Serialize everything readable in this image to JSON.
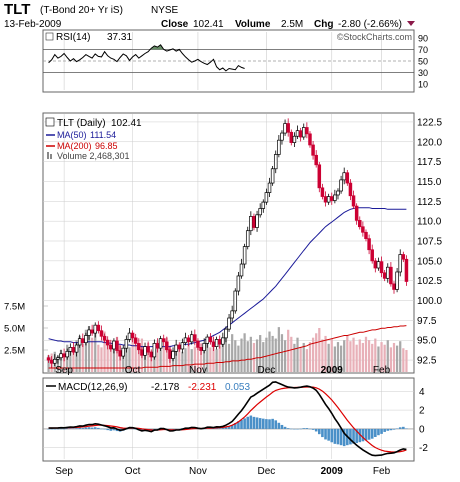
{
  "header": {
    "symbol": "TLT",
    "name": "(T-Bond 20+ Yr iS)",
    "exchange": "NYSE",
    "date": "13-Feb-2009",
    "close_label": "Close",
    "close": "102.41",
    "volume_label": "Volume",
    "volume": "2.5M",
    "chg_label": "Chg",
    "chg": "-2.80 (-2.66%)",
    "copyright": "©StockCharts.com"
  },
  "colors": {
    "up_candle": "#000000",
    "down_candle": "#cc0033",
    "ma50": "#1a1a99",
    "ma200": "#cc0000",
    "volume_up": "#a8a8a8",
    "volume_down": "#e8b0b8",
    "rsi_overbought_fill": "#336633",
    "macd_line": "#000000",
    "signal_line": "#dd0000",
    "histogram": "#4a90c8",
    "grid": "#cccccc"
  },
  "chart_data": [
    {
      "type": "line",
      "title": "RSI(14) 37.31",
      "legend": "RSI(14)",
      "legend_value": "37.31",
      "y_ticks": [
        "90",
        "70",
        "50",
        "30",
        "10"
      ],
      "ylim": [
        0,
        100
      ],
      "reference_lines": [
        70,
        50,
        30
      ],
      "series": [
        {
          "values": [
            47,
            52,
            61,
            55,
            58,
            63,
            56,
            50,
            54,
            49,
            52,
            56,
            61,
            58,
            55,
            62,
            58,
            57,
            66,
            59,
            55,
            53,
            49,
            56,
            62,
            59,
            51,
            57,
            61,
            55,
            59,
            63,
            66,
            72,
            76,
            74,
            78,
            70,
            67,
            69,
            71,
            67,
            70,
            63,
            57,
            52,
            48,
            50,
            53,
            49,
            46,
            44,
            48,
            53,
            40,
            35,
            38,
            33,
            37,
            36,
            35,
            42,
            39,
            37
          ]
        }
      ]
    },
    {
      "type": "candlestick",
      "title": "TLT (Daily) 102.41",
      "x_ticks": [
        "Sep",
        "Oct",
        "Nov",
        "Dec",
        "2009",
        "Feb"
      ],
      "y_ticks": [
        "122.5",
        "120.0",
        "117.5",
        "115.0",
        "112.5",
        "110.0",
        "107.5",
        "105.0",
        "102.5",
        "100.0",
        "97.5",
        "95.0",
        "92.5"
      ],
      "ylim": [
        91.0,
        123.5
      ],
      "volume_ticks": [
        "7.5M",
        "5.0M",
        "2.5M"
      ],
      "volume_label": "Volume 2,468,301",
      "legend": [
        {
          "name": "TLT (Daily)",
          "value": "102.41"
        },
        {
          "name": "MA(50)",
          "value": "111.54"
        },
        {
          "name": "MA(200)",
          "value": "96.85"
        },
        {
          "name": "Volume",
          "value": "2,468,301"
        }
      ],
      "closes": [
        92.5,
        92.1,
        92.6,
        92.8,
        93.3,
        92.9,
        93.6,
        94.1,
        93.5,
        94.4,
        95.2,
        94.7,
        95.6,
        96.3,
        95.9,
        96.9,
        96.2,
        95.5,
        95.0,
        94.4,
        93.9,
        94.9,
        93.7,
        93.0,
        94.0,
        95.1,
        95.9,
        95.3,
        94.6,
        93.8,
        93.1,
        94.2,
        93.5,
        92.9,
        94.6,
        94.0,
        95.2,
        94.8,
        93.8,
        92.7,
        93.6,
        94.4,
        93.9,
        94.7,
        95.3,
        94.8,
        95.7,
        94.9,
        94.1,
        93.7,
        94.6,
        95.4,
        94.8,
        94.2,
        95.1,
        94.5,
        95.3,
        96.4,
        97.8,
        98.7,
        101.2,
        103.1,
        104.6,
        106.8,
        108.8,
        110.6,
        109.2,
        110.8,
        111.6,
        112.4,
        113.6,
        114.8,
        116.6,
        118.4,
        120.2,
        121.1,
        122.3,
        121.2,
        119.9,
        120.7,
        121.4,
        120.6,
        121.8,
        121.0,
        119.6,
        118.3,
        117.1,
        114.2,
        113.1,
        112.4,
        113.1,
        112.6,
        113.3,
        113.8,
        115.2,
        116.1,
        114.8,
        113.2,
        111.9,
        110.1,
        109.3,
        108.6,
        107.8,
        106.4,
        105.0,
        104.1,
        104.9,
        103.5,
        102.8,
        104.2,
        102.1,
        101.4,
        103.6,
        105.8,
        105.2,
        102.4
      ],
      "ma50": [
        95.2,
        95.1,
        95.0,
        94.9,
        94.9,
        94.8,
        94.8,
        94.8,
        94.7,
        94.7,
        94.7,
        94.7,
        94.8,
        94.8,
        94.8,
        94.8,
        94.8,
        94.8,
        94.7,
        94.7,
        94.6,
        94.6,
        94.5,
        94.5,
        94.4,
        94.4,
        94.4,
        94.3,
        94.3,
        94.3,
        94.2,
        94.2,
        94.2,
        94.2,
        94.2,
        94.2,
        94.2,
        94.2,
        94.2,
        94.2,
        94.3,
        94.3,
        94.3,
        94.4,
        94.5,
        94.5,
        94.6,
        94.7,
        94.8,
        94.9,
        95.0,
        95.2,
        95.4,
        95.6,
        95.8,
        96.0,
        96.3,
        96.6,
        96.9,
        97.2,
        97.5,
        97.8,
        98.1,
        98.4,
        98.7,
        99.0,
        99.3,
        99.6,
        99.9,
        100.2,
        100.6,
        101.0,
        101.4,
        101.8,
        102.3,
        102.8,
        103.3,
        103.8,
        104.3,
        104.8,
        105.3,
        105.8,
        106.3,
        106.8,
        107.3,
        107.7,
        108.1,
        108.5,
        108.9,
        109.3,
        109.6,
        109.9,
        110.2,
        110.5,
        110.8,
        111.1,
        111.3,
        111.5,
        111.6,
        111.7,
        111.7,
        111.7,
        111.7,
        111.7,
        111.6,
        111.6,
        111.6,
        111.6,
        111.6,
        111.5,
        111.5,
        111.5,
        111.5,
        111.5,
        111.5,
        111.5
      ],
      "ma200": [
        91.5,
        91.5,
        91.5,
        91.5,
        91.5,
        91.5,
        91.5,
        91.5,
        91.5,
        91.5,
        91.5,
        91.5,
        91.5,
        91.5,
        91.5,
        91.5,
        91.5,
        91.5,
        91.5,
        91.5,
        91.5,
        91.5,
        91.5,
        91.5,
        91.5,
        91.5,
        91.5,
        91.5,
        91.5,
        91.5,
        91.5,
        91.6,
        91.6,
        91.6,
        91.6,
        91.6,
        91.7,
        91.7,
        91.7,
        91.7,
        91.8,
        91.8,
        91.8,
        91.8,
        91.9,
        91.9,
        91.9,
        92.0,
        92.0,
        92.0,
        92.0,
        92.1,
        92.1,
        92.1,
        92.2,
        92.2,
        92.2,
        92.3,
        92.3,
        92.4,
        92.4,
        92.4,
        92.5,
        92.5,
        92.6,
        92.6,
        92.7,
        92.8,
        92.8,
        92.9,
        93.0,
        93.1,
        93.2,
        93.3,
        93.4,
        93.5,
        93.6,
        93.7,
        93.8,
        93.9,
        94.0,
        94.1,
        94.2,
        94.3,
        94.5,
        94.6,
        94.7,
        94.8,
        94.9,
        95.0,
        95.1,
        95.2,
        95.3,
        95.4,
        95.5,
        95.6,
        95.6,
        95.7,
        95.8,
        95.9,
        96.0,
        96.0,
        96.1,
        96.2,
        96.3,
        96.3,
        96.4,
        96.5,
        96.5,
        96.6,
        96.6,
        96.7,
        96.7,
        96.8,
        96.8,
        96.85
      ],
      "volume_millions": [
        1.9,
        2.1,
        2.3,
        1.8,
        2.5,
        2.0,
        3.1,
        2.4,
        2.8,
        3.6,
        4.1,
        3.2,
        4.8,
        5.2,
        3.9,
        4.5,
        3.1,
        2.8,
        4.6,
        3.7,
        2.9,
        3.3,
        4.0,
        3.1,
        2.6,
        3.4,
        2.8,
        4.2,
        3.1,
        2.7,
        3.8,
        2.9,
        3.3,
        2.4,
        2.8,
        3.5,
        2.6,
        2.9,
        3.9,
        3.0,
        2.5,
        2.8,
        3.1,
        2.3,
        2.7,
        3.2,
        2.6,
        2.9,
        3.3,
        2.4,
        2.9,
        3.4,
        2.8,
        3.1,
        2.6,
        3.0,
        3.5,
        3.9,
        3.2,
        4.3,
        3.6,
        3.0,
        3.8,
        4.4,
        3.5,
        4.0,
        3.3,
        3.7,
        4.2,
        3.4,
        3.9,
        4.6,
        4.1,
        3.8,
        5.1,
        4.3,
        3.6,
        4.8,
        4.0,
        3.2,
        3.9,
        2.8,
        3.3,
        2.6,
        3.4,
        3.9,
        4.4,
        5.0,
        3.7,
        4.1,
        3.2,
        3.8,
        2.9,
        3.4,
        3.0,
        3.6,
        4.1,
        3.5,
        3.9,
        3.1,
        3.7,
        3.3,
        4.0,
        3.6,
        3.2,
        3.8,
        2.9,
        3.4,
        3.1,
        3.6,
        2.8,
        3.3,
        3.0,
        3.5,
        2.7,
        2.5
      ]
    },
    {
      "type": "line",
      "title": "MACD(12,26,9) -2.178, -2.231, 0.053",
      "legend": "MACD(12,26,9)",
      "legend_values": [
        "-2.178",
        "-2.231",
        "0.053"
      ],
      "y_ticks": [
        "4",
        "2",
        "0",
        "-2"
      ],
      "ylim": [
        -3.2,
        5.2
      ],
      "x_ticks": [
        "Sep",
        "Oct",
        "Nov",
        "Dec",
        "2009",
        "Feb"
      ],
      "series": [
        {
          "values": [
            0.1,
            0.09,
            0.1,
            0.11,
            0.13,
            0.12,
            0.16,
            0.2,
            0.18,
            0.24,
            0.32,
            0.3,
            0.39,
            0.47,
            0.46,
            0.54,
            0.5,
            0.42,
            0.33,
            0.22,
            0.11,
            0.12,
            -0.02,
            -0.15,
            -0.1,
            0.02,
            0.14,
            0.13,
            0.05,
            -0.08,
            -0.21,
            -0.15,
            -0.21,
            -0.29,
            -0.13,
            -0.11,
            0.03,
            0.03,
            -0.07,
            -0.22,
            -0.2,
            -0.12,
            -0.11,
            -0.02,
            0.08,
            0.08,
            0.16,
            0.14,
            0.07,
            0.02,
            0.08,
            0.18,
            0.18,
            0.15,
            0.22,
            0.21,
            0.27,
            0.39,
            0.59,
            0.8,
            1.17,
            1.57,
            1.95,
            2.4,
            2.89,
            3.38,
            3.56,
            3.8,
            4.01,
            4.22,
            4.43,
            4.65,
            4.96,
            5.0,
            4.85,
            4.71,
            4.56,
            4.45,
            4.41,
            4.36,
            4.38,
            4.43,
            4.51,
            4.55,
            4.48,
            4.34,
            4.1,
            3.67,
            3.15,
            2.62,
            2.17,
            1.65,
            1.08,
            0.62,
            0.09,
            -0.46,
            -0.8,
            -1.13,
            -1.44,
            -1.73,
            -1.99,
            -2.23,
            -2.43,
            -2.64,
            -2.8,
            -2.84,
            -2.81,
            -2.79,
            -2.68,
            -2.6,
            -2.58,
            -2.54,
            -2.41,
            -2.24,
            -2.13,
            -2.18
          ]
        },
        {
          "values": [
            0.1,
            0.1,
            0.1,
            0.1,
            0.11,
            0.11,
            0.12,
            0.13,
            0.14,
            0.16,
            0.19,
            0.21,
            0.24,
            0.29,
            0.32,
            0.36,
            0.39,
            0.4,
            0.38,
            0.35,
            0.31,
            0.27,
            0.21,
            0.14,
            0.09,
            0.07,
            0.09,
            0.1,
            0.09,
            0.06,
            0.0,
            -0.03,
            -0.07,
            -0.11,
            -0.12,
            -0.12,
            -0.09,
            -0.06,
            -0.06,
            -0.09,
            -0.11,
            -0.11,
            -0.11,
            -0.09,
            -0.06,
            -0.03,
            0.01,
            0.04,
            0.04,
            0.04,
            0.05,
            0.07,
            0.09,
            0.1,
            0.12,
            0.14,
            0.16,
            0.21,
            0.28,
            0.39,
            0.55,
            0.75,
            1.0,
            1.28,
            1.6,
            1.96,
            2.28,
            2.58,
            2.86,
            3.13,
            3.39,
            3.63,
            3.89,
            4.09,
            4.2,
            4.29,
            4.34,
            4.37,
            4.39,
            4.4,
            4.41,
            4.41,
            4.43,
            4.46,
            4.46,
            4.44,
            4.37,
            4.23,
            4.02,
            3.74,
            3.42,
            3.07,
            2.67,
            2.26,
            1.82,
            1.37,
            0.93,
            0.52,
            0.13,
            -0.23,
            -0.58,
            -0.91,
            -1.21,
            -1.49,
            -1.76,
            -1.98,
            -2.14,
            -2.26,
            -2.36,
            -2.4,
            -2.44,
            -2.46,
            -2.46,
            -2.41,
            -2.35,
            -2.23
          ]
        }
      ],
      "histogram": [
        0.0,
        -0.01,
        0.0,
        0.01,
        0.02,
        0.01,
        0.04,
        0.07,
        0.04,
        0.08,
        0.13,
        0.09,
        0.15,
        0.18,
        0.14,
        0.18,
        0.11,
        0.02,
        -0.05,
        -0.13,
        -0.2,
        -0.15,
        -0.23,
        -0.29,
        -0.19,
        -0.05,
        0.05,
        0.03,
        -0.04,
        -0.14,
        -0.21,
        -0.12,
        -0.14,
        -0.18,
        -0.01,
        0.01,
        0.12,
        0.09,
        -0.01,
        -0.13,
        -0.09,
        -0.01,
        0.0,
        0.07,
        0.14,
        0.11,
        0.15,
        0.1,
        0.03,
        -0.02,
        0.03,
        0.11,
        0.09,
        0.05,
        0.1,
        0.07,
        0.11,
        0.18,
        0.31,
        0.41,
        0.62,
        0.82,
        0.95,
        1.12,
        1.29,
        1.42,
        1.28,
        1.22,
        1.15,
        1.09,
        1.04,
        1.02,
        1.07,
        0.91,
        0.65,
        0.42,
        0.22,
        0.08,
        0.02,
        -0.04,
        -0.03,
        0.02,
        0.08,
        0.09,
        0.02,
        -0.1,
        -0.27,
        -0.56,
        -0.87,
        -1.12,
        -1.25,
        -1.42,
        -1.59,
        -1.64,
        -1.73,
        -1.83,
        -1.73,
        -1.65,
        -1.57,
        -1.5,
        -1.41,
        -1.32,
        -1.22,
        -1.15,
        -1.04,
        -0.86,
        -0.67,
        -0.53,
        -0.32,
        -0.2,
        -0.14,
        -0.08,
        0.05,
        0.17,
        0.22,
        0.05
      ]
    }
  ]
}
